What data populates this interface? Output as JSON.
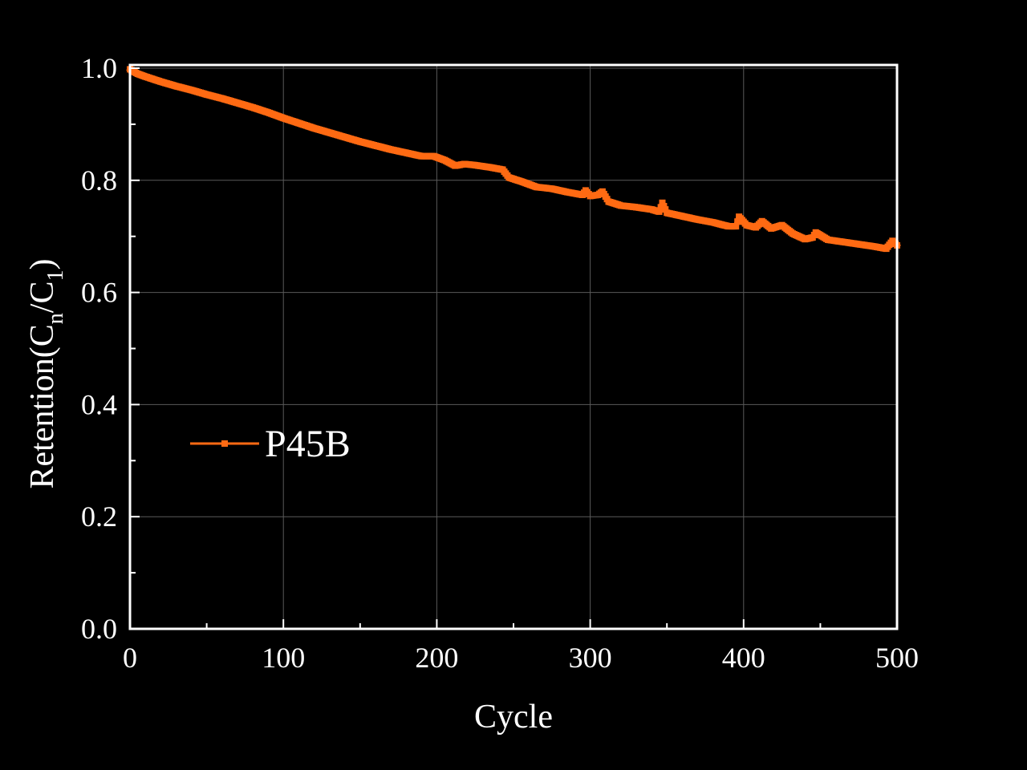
{
  "chart_data": {
    "type": "line",
    "title": "",
    "xlabel": "Cycle",
    "ylabel": {
      "main": "Retention(C",
      "sub_n": "n",
      "slash": "/C",
      "sub_1": "1",
      "close": ")"
    },
    "xlim": [
      0,
      500
    ],
    "ylim": [
      0.0,
      1.0
    ],
    "x_ticks": [
      "0",
      "100",
      "200",
      "300",
      "400",
      "500"
    ],
    "y_ticks": [
      "0.0",
      "0.2",
      "0.4",
      "0.6",
      "0.8",
      "1.0"
    ],
    "grid": true,
    "legend_position": "middle-left",
    "series": [
      {
        "name": "P45B",
        "color": "#ff6a13",
        "x": [
          0,
          5,
          10,
          20,
          30,
          40,
          50,
          60,
          70,
          80,
          90,
          100,
          110,
          120,
          130,
          140,
          150,
          160,
          170,
          180,
          190,
          198,
          205,
          212,
          218,
          225,
          235,
          243,
          247,
          255,
          265,
          275,
          285,
          295,
          297,
          300,
          305,
          308,
          312,
          320,
          330,
          340,
          345,
          347,
          350,
          360,
          370,
          380,
          390,
          395,
          397,
          402,
          408,
          412,
          418,
          425,
          432,
          440,
          445,
          447,
          455,
          465,
          475,
          485,
          493,
          497,
          500
        ],
        "values": [
          0.998,
          0.99,
          0.985,
          0.976,
          0.968,
          0.961,
          0.953,
          0.946,
          0.938,
          0.93,
          0.921,
          0.911,
          0.902,
          0.893,
          0.885,
          0.877,
          0.869,
          0.862,
          0.855,
          0.849,
          0.843,
          0.843,
          0.836,
          0.826,
          0.829,
          0.827,
          0.823,
          0.819,
          0.805,
          0.798,
          0.788,
          0.785,
          0.779,
          0.774,
          0.782,
          0.772,
          0.774,
          0.78,
          0.762,
          0.755,
          0.752,
          0.748,
          0.744,
          0.76,
          0.742,
          0.736,
          0.73,
          0.725,
          0.718,
          0.718,
          0.735,
          0.72,
          0.716,
          0.727,
          0.714,
          0.72,
          0.705,
          0.695,
          0.698,
          0.707,
          0.694,
          0.69,
          0.686,
          0.682,
          0.678,
          0.692,
          0.684
        ]
      }
    ]
  }
}
